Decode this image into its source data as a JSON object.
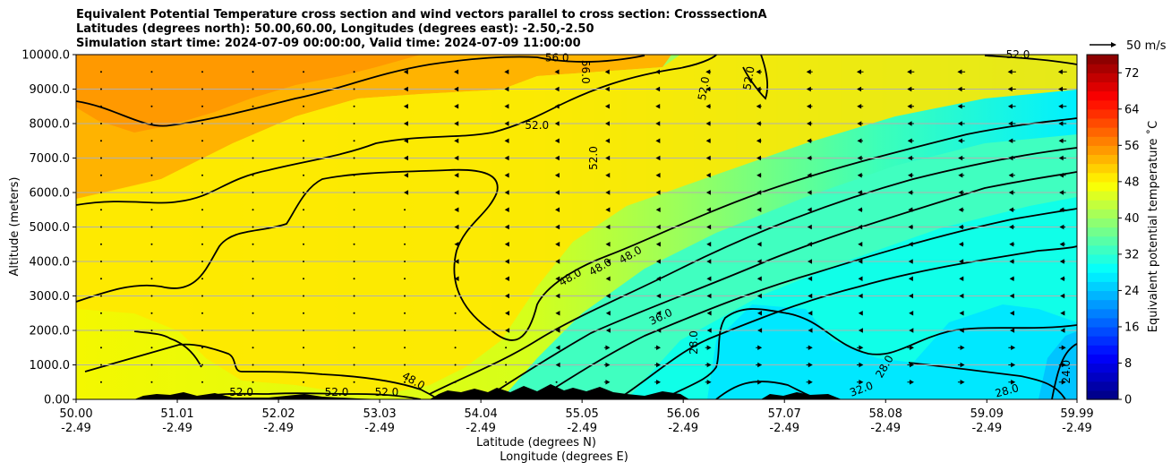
{
  "chart_data": {
    "type": "cross-section",
    "title_lines": [
      "Equivalent Potential Temperature cross section and wind vectors parallel to cross section: CrosssectionA",
      "Latitudes (degrees north): 50.00,60.00, Longitudes (degrees east): -2.50,-2.50",
      "Simulation start time: 2024-07-09 00:00:00, Valid time: 2024-07-09 11:00:00"
    ],
    "xlabel_lat": "Latitude (degrees N)",
    "xlabel_lon": "Longitude (degrees E)",
    "ylabel": "Altitude (meters)",
    "xlim": [
      50.0,
      59.99
    ],
    "ylim": [
      0,
      10000
    ],
    "x_ticks": [
      {
        "lat": "50.00",
        "lon": "-2.49",
        "value": 50.0
      },
      {
        "lat": "51.01",
        "lon": "-2.49",
        "value": 51.01
      },
      {
        "lat": "52.02",
        "lon": "-2.49",
        "value": 52.02
      },
      {
        "lat": "53.03",
        "lon": "-2.49",
        "value": 53.03
      },
      {
        "lat": "54.04",
        "lon": "-2.49",
        "value": 54.04
      },
      {
        "lat": "55.05",
        "lon": "-2.49",
        "value": 55.05
      },
      {
        "lat": "56.06",
        "lon": "-2.49",
        "value": 56.06
      },
      {
        "lat": "57.07",
        "lon": "-2.49",
        "value": 57.07
      },
      {
        "lat": "58.08",
        "lon": "-2.49",
        "value": 58.08
      },
      {
        "lat": "59.09",
        "lon": "-2.49",
        "value": 59.09
      },
      {
        "lat": "59.99",
        "lon": "-2.49",
        "value": 59.99
      }
    ],
    "y_ticks": [
      {
        "label": "0.00",
        "value": 0
      },
      {
        "label": "1000.0",
        "value": 1000
      },
      {
        "label": "2000.0",
        "value": 2000
      },
      {
        "label": "3000.0",
        "value": 3000
      },
      {
        "label": "4000.0",
        "value": 4000
      },
      {
        "label": "5000.0",
        "value": 5000
      },
      {
        "label": "6000.0",
        "value": 6000
      },
      {
        "label": "7000.0",
        "value": 7000
      },
      {
        "label": "8000.0",
        "value": 8000
      },
      {
        "label": "9000.0",
        "value": 9000
      },
      {
        "label": "10000.0",
        "value": 10000
      }
    ],
    "grid": "horizontal",
    "colorbar": {
      "label": "Equivalent potential temperature ˚C",
      "range": [
        0,
        76
      ],
      "step": 2,
      "ticks": [
        "0",
        "8",
        "16",
        "24",
        "32",
        "40",
        "48",
        "56",
        "64",
        "72"
      ],
      "colormap": "jet"
    },
    "contour_labels": [
      "56.0",
      "52.0",
      "48.0",
      "36.0",
      "28.0",
      "32.0",
      "24.0",
      "28.0",
      "52.0",
      "48.0"
    ],
    "contour_label_marks": [
      {
        "text": "56.0",
        "x": 54.8,
        "y": 9800
      },
      {
        "text": "56.0",
        "x": 55.05,
        "y": 9500,
        "angle": 90
      },
      {
        "text": "52.0",
        "x": 54.6,
        "y": 7850
      },
      {
        "text": "52.0",
        "x": 56.3,
        "y": 9000,
        "angle": -80
      },
      {
        "text": "52.0",
        "x": 56.75,
        "y": 9300,
        "angle": -80
      },
      {
        "text": "52.0",
        "x": 55.2,
        "y": 7000,
        "angle": -90
      },
      {
        "text": "52.0",
        "x": 51.65,
        "y": 100
      },
      {
        "text": "52.0",
        "x": 52.6,
        "y": 100
      },
      {
        "text": "52.0",
        "x": 53.1,
        "y": 100
      },
      {
        "text": "48.0",
        "x": 53.35,
        "y": 450,
        "angle": 30
      },
      {
        "text": "48.0",
        "x": 54.95,
        "y": 3450,
        "angle": -30
      },
      {
        "text": "48.0",
        "x": 55.25,
        "y": 3750,
        "angle": -30
      },
      {
        "text": "48.0",
        "x": 55.55,
        "y": 4100,
        "angle": -30
      },
      {
        "text": "36.0",
        "x": 55.85,
        "y": 2300,
        "angle": -25
      },
      {
        "text": "28.0",
        "x": 56.2,
        "y": 1650,
        "angle": -90
      },
      {
        "text": "28.0",
        "x": 58.1,
        "y": 900,
        "angle": -60
      },
      {
        "text": "32.0",
        "x": 57.85,
        "y": 200,
        "angle": -20
      },
      {
        "text": "28.0",
        "x": 59.3,
        "y": 150,
        "angle": -15
      },
      {
        "text": "24.0",
        "x": 59.92,
        "y": 800,
        "angle": -90
      },
      {
        "text": "52.0",
        "x": 59.4,
        "y": 9900
      }
    ],
    "wind_key": "50 m/s",
    "vector_grid": {
      "x_step_lat": 0.505,
      "y_step_m": 500,
      "note": "wind vectors near zero in the south, pointing toward decreasing latitude aloft in the north, toward increasing latitude at low levels north of 55N"
    }
  },
  "colors": {
    "contour": "#000000",
    "terrain": "#000000",
    "grid": "#b0b0b0"
  }
}
